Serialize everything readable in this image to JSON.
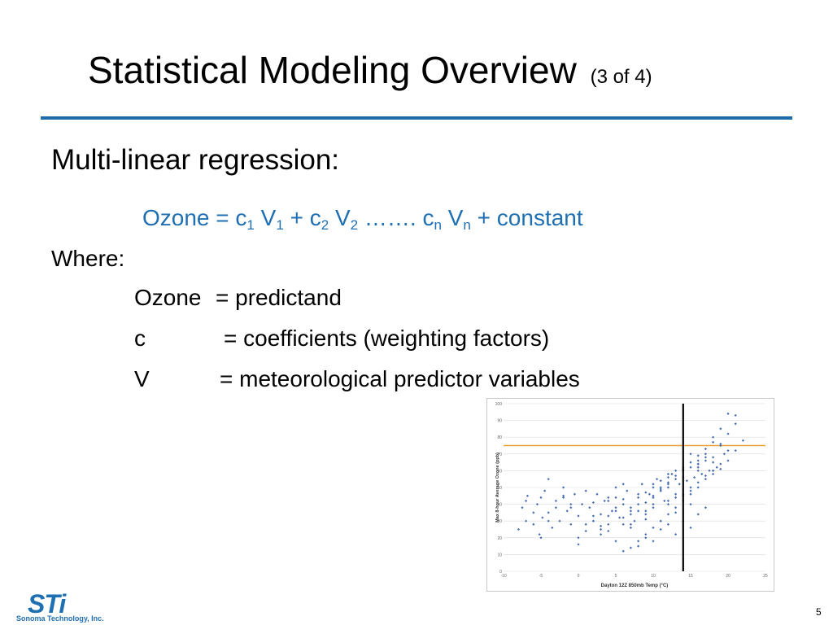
{
  "slide": {
    "title": "Statistical Modeling Overview",
    "title_sub": "(3 of 4)",
    "heading": "Multi-linear regression:",
    "formula": {
      "prefix": "Ozone = ",
      "c": "c",
      "v": "V",
      "sub1": "1",
      "sub2": "2",
      "subn": "n",
      "plus": "+",
      "ellipsis": "…….",
      "suffix": "+ constant"
    },
    "where": "Where:",
    "definitions": [
      {
        "term": "Ozone",
        "value": "= predictand"
      },
      {
        "term": "c",
        "value": "= coefficients (weighting factors)"
      },
      {
        "term": "V",
        "value": "= meteorological predictor variables"
      }
    ],
    "page_number": "5",
    "footer": {
      "logo_mark": "STi",
      "company": "Sonoma Technology, Inc."
    },
    "colors": {
      "accent": "#1f6fb3",
      "rule": "#1f6ba8",
      "threshold": "#e8a33a",
      "points": "#4a6fb0"
    }
  },
  "chart_data": {
    "type": "scatter",
    "xlabel": "Dayton 12Z 850mb Temp (°C)",
    "ylabel": "Max 8-hour Average Ozone (ppb)",
    "xlim": [
      -10,
      25
    ],
    "ylim": [
      0,
      100
    ],
    "x_ticks": [
      "-10",
      "-5",
      "0",
      "5",
      "10",
      "15",
      "20",
      "25"
    ],
    "y_ticks": [
      "0",
      "10",
      "20",
      "30",
      "40",
      "50",
      "60",
      "70",
      "80",
      "90",
      "100"
    ],
    "grid": true,
    "reference_lines": {
      "horizontal_y": 75,
      "vertical_x": 14
    },
    "x": [
      -8,
      -7.5,
      -7,
      -6.8,
      -6,
      -5.5,
      -5.2,
      -5,
      -4.8,
      -4.5,
      -4,
      -3.5,
      -3,
      -2.5,
      -2,
      -1.5,
      -1,
      -0.5,
      0,
      0.5,
      1,
      1.5,
      2,
      2.5,
      3,
      3.5,
      4,
      4.5,
      5,
      5.5,
      6,
      6.5,
      7,
      7.5,
      8,
      8.5,
      9,
      9.5,
      10,
      10.5,
      11,
      11.5,
      12,
      12.5,
      13,
      13.5,
      14,
      14.5,
      15,
      15.5,
      16,
      16.5,
      17,
      17.5,
      18,
      18.5,
      19,
      19.5,
      20,
      21,
      22,
      -6,
      -4,
      -2,
      0,
      2,
      4,
      6,
      8,
      10,
      12,
      14,
      16,
      18,
      20,
      -7,
      -3,
      1,
      3,
      5,
      7,
      9,
      11,
      13,
      15,
      17,
      19,
      -5,
      -1,
      2,
      4,
      6,
      8,
      10,
      12,
      13,
      14,
      15,
      16,
      17,
      18,
      0,
      3,
      5,
      7,
      9,
      11,
      12,
      13,
      14,
      15,
      16,
      17,
      18,
      19,
      -2,
      1,
      4,
      6,
      8,
      10,
      11,
      12,
      13,
      15,
      16,
      17,
      -4,
      -1,
      2,
      5,
      7,
      9,
      10,
      11,
      12,
      14,
      16,
      18,
      19,
      20,
      21,
      18,
      19,
      20,
      21,
      8,
      9,
      10,
      11,
      12,
      13,
      14,
      15,
      16,
      17,
      6,
      7,
      8,
      9,
      10,
      11,
      12,
      13,
      14,
      15,
      16,
      3,
      4,
      5,
      6,
      7,
      9,
      10,
      11,
      12,
      13,
      14,
      15,
      16,
      17,
      18
    ],
    "y": [
      25,
      38,
      30,
      45,
      28,
      40,
      22,
      44,
      32,
      48,
      35,
      26,
      42,
      30,
      50,
      36,
      28,
      46,
      33,
      40,
      24,
      38,
      30,
      46,
      34,
      42,
      28,
      36,
      44,
      32,
      40,
      48,
      38,
      30,
      44,
      52,
      36,
      46,
      40,
      55,
      48,
      42,
      50,
      58,
      46,
      52,
      60,
      54,
      62,
      56,
      64,
      58,
      66,
      60,
      68,
      62,
      64,
      70,
      66,
      72,
      78,
      35,
      30,
      45,
      20,
      33,
      44,
      52,
      40,
      50,
      58,
      45,
      66,
      60,
      72,
      42,
      38,
      28,
      25,
      50,
      34,
      47,
      54,
      60,
      70,
      68,
      75,
      20,
      40,
      30,
      42,
      28,
      46,
      38,
      52,
      44,
      56,
      48,
      62,
      55,
      58,
      16,
      22,
      18,
      26,
      34,
      30,
      40,
      35,
      46,
      50,
      53,
      57,
      65,
      61,
      44,
      48,
      24,
      32,
      36,
      44,
      50,
      42,
      55,
      40,
      60,
      70,
      55,
      38,
      41,
      36,
      28,
      31,
      52,
      48,
      56,
      62,
      64,
      60,
      76,
      82,
      88,
      80,
      85,
      94,
      93,
      15,
      20,
      18,
      25,
      28,
      22,
      30,
      26,
      34,
      38,
      12,
      14,
      18,
      22,
      26,
      30,
      34,
      38,
      42,
      46,
      50,
      27,
      33,
      38,
      43,
      36,
      41,
      45,
      49,
      53,
      57,
      61,
      65,
      69,
      73,
      77
    ]
  }
}
